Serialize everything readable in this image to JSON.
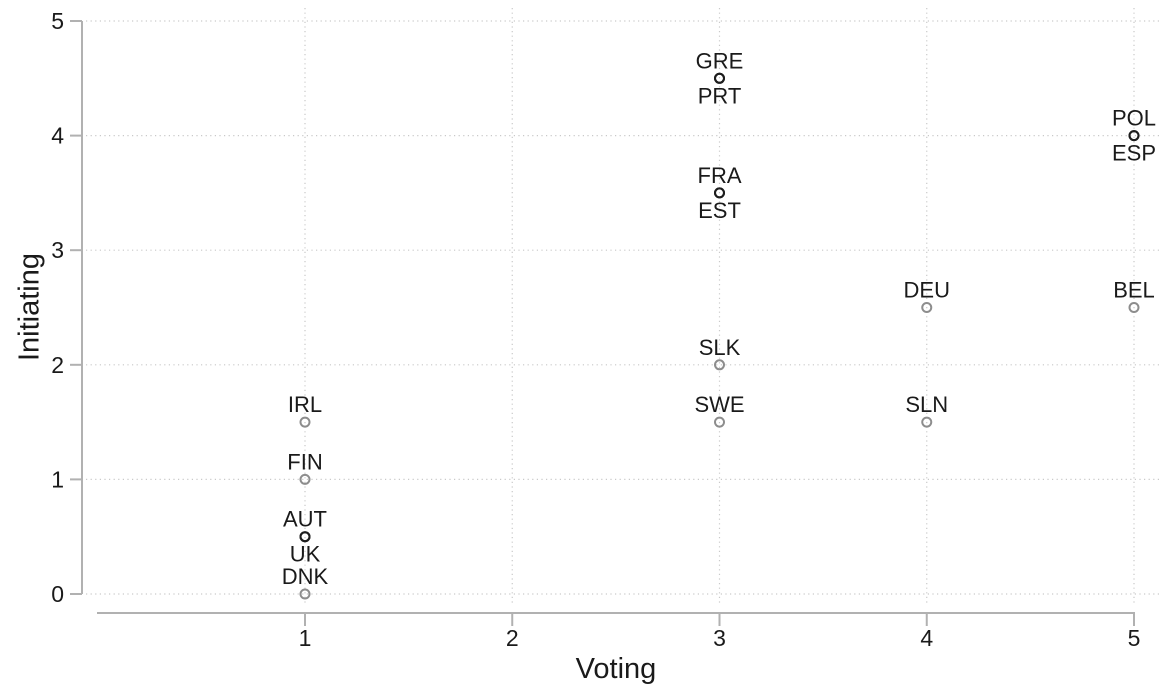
{
  "chart_data": {
    "type": "scatter",
    "title": "",
    "xlabel": "Voting",
    "ylabel": "Initiating",
    "xlim": [
      1,
      5
    ],
    "ylim": [
      0,
      5
    ],
    "xticks": [
      1,
      2,
      3,
      4,
      5
    ],
    "yticks": [
      0,
      1,
      2,
      3,
      4,
      5
    ],
    "grid": "dotted, both axes",
    "legend": "none",
    "colors": {
      "background": "#ffffff",
      "axis": "#b1b1b1",
      "grid": "#c9c9c9",
      "text": "#1a1a1a",
      "marker_single": "#8d8d8d",
      "marker_overlap": "#1d1d1d"
    },
    "points": [
      {
        "country": "GRE",
        "x": 3,
        "y": 4.5,
        "label_pos": "above",
        "shade": "dark"
      },
      {
        "country": "PRT",
        "x": 3,
        "y": 4.5,
        "label_pos": "below",
        "shade": "dark"
      },
      {
        "country": "POL",
        "x": 5,
        "y": 4,
        "label_pos": "above",
        "shade": "dark"
      },
      {
        "country": "ESP",
        "x": 5,
        "y": 4,
        "label_pos": "below",
        "shade": "dark"
      },
      {
        "country": "FRA",
        "x": 3,
        "y": 3.5,
        "label_pos": "above",
        "shade": "dark"
      },
      {
        "country": "EST",
        "x": 3,
        "y": 3.5,
        "label_pos": "below",
        "shade": "dark"
      },
      {
        "country": "DEU",
        "x": 4,
        "y": 2.5,
        "label_pos": "above",
        "shade": "gray"
      },
      {
        "country": "BEL",
        "x": 5,
        "y": 2.5,
        "label_pos": "above",
        "shade": "gray"
      },
      {
        "country": "SLK",
        "x": 3,
        "y": 2,
        "label_pos": "above",
        "shade": "gray"
      },
      {
        "country": "SWE",
        "x": 3,
        "y": 1.5,
        "label_pos": "above",
        "shade": "gray"
      },
      {
        "country": "SLN",
        "x": 4,
        "y": 1.5,
        "label_pos": "above",
        "shade": "gray"
      },
      {
        "country": "IRL",
        "x": 1,
        "y": 1.5,
        "label_pos": "above",
        "shade": "gray"
      },
      {
        "country": "FIN",
        "x": 1,
        "y": 1,
        "label_pos": "above",
        "shade": "gray"
      },
      {
        "country": "AUT",
        "x": 1,
        "y": 0.5,
        "label_pos": "above",
        "shade": "dark"
      },
      {
        "country": "UK",
        "x": 1,
        "y": 0.5,
        "label_pos": "below",
        "shade": "dark"
      },
      {
        "country": "DNK",
        "x": 1,
        "y": 0,
        "label_pos": "above",
        "shade": "gray"
      }
    ]
  }
}
